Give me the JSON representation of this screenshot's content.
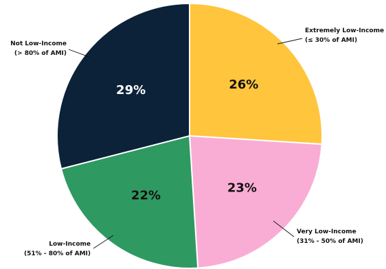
{
  "chart_data": {
    "type": "pie",
    "title": "",
    "slices": [
      {
        "label_line1": "Extremely Low-Income",
        "label_line2": "(≤ 30% of AMI)",
        "value": 26,
        "value_label": "26%",
        "color": "#FFC53D",
        "value_text_color": "#111111"
      },
      {
        "label_line1": "Very Low-Income",
        "label_line2": "(31% - 50% of AMI)",
        "value": 23,
        "value_label": "23%",
        "color": "#FAADD4",
        "value_text_color": "#111111"
      },
      {
        "label_line1": "Low-Income",
        "label_line2": "(51% - 80% of AMI)",
        "value": 22,
        "value_label": "22%",
        "color": "#2F9962",
        "value_text_color": "#111111"
      },
      {
        "label_line1": "Not Low-Income",
        "label_line2": "(> 80% of AMI)",
        "value": 29,
        "value_label": "29%",
        "color": "#0B2239",
        "value_text_color": "#FFFFFF"
      }
    ],
    "start_angle_deg": 0,
    "direction": "clockwise"
  }
}
